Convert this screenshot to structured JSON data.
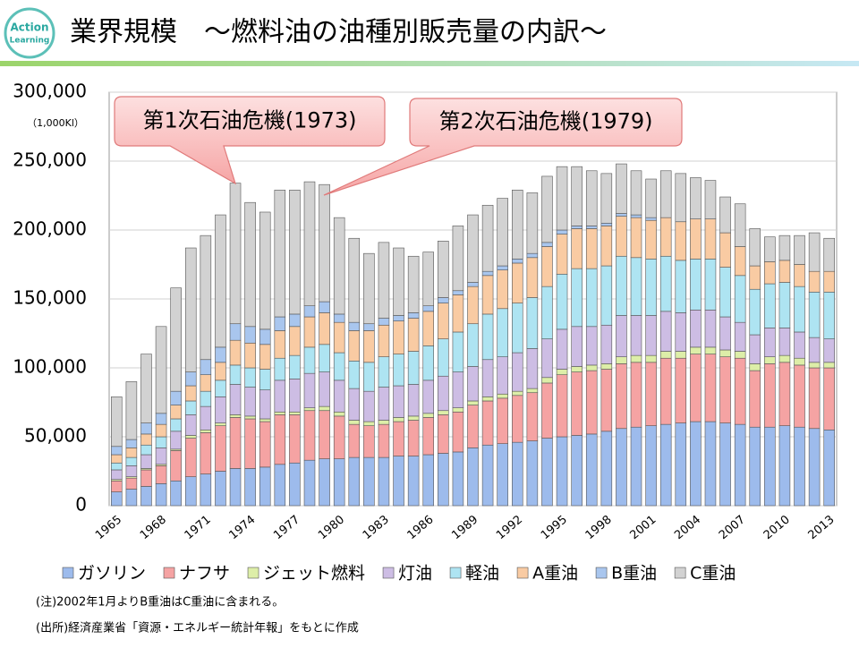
{
  "logo": {
    "line1": "Action",
    "line2": "Learning"
  },
  "header_title": "業界規模　～燃料油の油種別販売量の内訳～",
  "notes": [
    "(注)2002年1月よりB重油はC重油に含まれる。",
    "(出所)経済産業省「資源・エネルギー統計年報」をもとに作成"
  ],
  "chart_data": {
    "type": "stacked_bar",
    "y_label": "（1,000Kl）",
    "annotations": [
      "第1次石油危機(1973)",
      "第2次石油危機(1979)"
    ],
    "categories": [
      "1965",
      null,
      null,
      "1968",
      null,
      null,
      "1971",
      null,
      null,
      "1974",
      null,
      null,
      "1977",
      null,
      null,
      "1980",
      null,
      null,
      "1983",
      null,
      null,
      "1986",
      null,
      null,
      "1989",
      null,
      null,
      "1992",
      null,
      null,
      "1995",
      null,
      null,
      "1998",
      null,
      null,
      "2001",
      null,
      null,
      "2004",
      null,
      null,
      "2007",
      null,
      null,
      "2010",
      null,
      null,
      "2013"
    ],
    "ylim": [
      0,
      300000
    ],
    "yticks": [
      0,
      {
        "value": 50000,
        "label": "50,000"
      },
      {
        "value": 100000,
        "label": "100,000"
      },
      {
        "value": 150000,
        "label": "150,000"
      },
      {
        "value": 200000,
        "label": "200,000"
      },
      {
        "value": 250000,
        "label": "250,000"
      },
      {
        "value": 300000,
        "label": "300,000"
      }
    ],
    "grid": true,
    "legend": "bottom",
    "series": [
      {
        "name": "ガソリン",
        "color": "#9dbbec",
        "values": [
          10000,
          12000,
          14000,
          16000,
          18000,
          21000,
          23000,
          25000,
          27000,
          27000,
          28000,
          30000,
          31000,
          33000,
          34000,
          34000,
          35000,
          35000,
          35000,
          36000,
          36000,
          37000,
          38000,
          39000,
          42000,
          44000,
          45000,
          46000,
          47000,
          49000,
          50000,
          51000,
          52000,
          54000,
          56000,
          57000,
          58000,
          59000,
          60000,
          61000,
          61000,
          60000,
          59000,
          57000,
          57000,
          58000,
          57000,
          56000,
          55000
        ]
      },
      {
        "name": "ナフサ",
        "color": "#f5a3a3",
        "values": [
          8000,
          8000,
          12000,
          13000,
          22000,
          28000,
          30000,
          33000,
          37000,
          36000,
          33000,
          36000,
          35000,
          36000,
          35000,
          31000,
          24000,
          23000,
          24000,
          25000,
          26000,
          27000,
          28000,
          29000,
          31000,
          32000,
          33000,
          34000,
          35000,
          40000,
          45000,
          46000,
          46000,
          45000,
          47000,
          47000,
          46000,
          48000,
          47000,
          49000,
          49000,
          48000,
          48000,
          41000,
          46000,
          46000,
          45000,
          44000,
          45000
        ]
      },
      {
        "name": "ジェット燃料",
        "color": "#ddeea8",
        "values": [
          1000,
          1000,
          1000,
          1000,
          1000,
          2000,
          2000,
          2000,
          2000,
          2000,
          2000,
          2000,
          2000,
          2000,
          3000,
          3000,
          3000,
          3000,
          3000,
          3000,
          3000,
          3000,
          3000,
          3000,
          3000,
          3000,
          3000,
          3000,
          3000,
          4000,
          4000,
          4000,
          4000,
          4000,
          5000,
          5000,
          5000,
          5000,
          5000,
          5000,
          5000,
          5000,
          5000,
          5000,
          5000,
          5000,
          5000,
          4000,
          4000
        ]
      },
      {
        "name": "灯油",
        "color": "#cdbde4",
        "values": [
          7000,
          8000,
          10000,
          12000,
          13000,
          15000,
          17000,
          19000,
          22000,
          21000,
          21000,
          23000,
          24000,
          25000,
          25000,
          23000,
          23000,
          22000,
          24000,
          23000,
          23000,
          24000,
          25000,
          26000,
          25000,
          27000,
          27000,
          28000,
          29000,
          28000,
          29000,
          29000,
          28000,
          28000,
          30000,
          29000,
          29000,
          29000,
          28000,
          27000,
          27000,
          24000,
          21000,
          21000,
          21000,
          20000,
          19000,
          18000,
          17000
        ]
      },
      {
        "name": "軽油",
        "color": "#aee4f2",
        "values": [
          5000,
          6000,
          7000,
          8000,
          9000,
          10000,
          11000,
          12000,
          14000,
          14000,
          15000,
          16000,
          17000,
          19000,
          20000,
          20000,
          20000,
          21000,
          22000,
          23000,
          24000,
          25000,
          27000,
          29000,
          31000,
          33000,
          35000,
          36000,
          37000,
          38000,
          40000,
          42000,
          42000,
          43000,
          43000,
          42000,
          41000,
          40000,
          38000,
          37000,
          37000,
          36000,
          34000,
          33000,
          32000,
          33000,
          33000,
          33000,
          34000
        ]
      },
      {
        "name": "A重油",
        "color": "#f9cba3",
        "values": [
          6000,
          7000,
          8000,
          9000,
          10000,
          11000,
          12000,
          13000,
          18000,
          18000,
          18000,
          20000,
          21000,
          22000,
          23000,
          22000,
          22000,
          23000,
          23000,
          24000,
          24000,
          25000,
          26000,
          27000,
          27000,
          28000,
          28000,
          29000,
          29000,
          29000,
          29000,
          29000,
          29000,
          29000,
          29000,
          29000,
          28000,
          28000,
          28000,
          29000,
          29000,
          25000,
          21000,
          17000,
          16000,
          16000,
          16000,
          15000,
          15000
        ]
      },
      {
        "name": "B重油",
        "color": "#a9c6ee",
        "values": [
          6000,
          6000,
          8000,
          8000,
          10000,
          10000,
          11000,
          11000,
          12000,
          12000,
          11000,
          10000,
          9000,
          8000,
          8000,
          6000,
          6000,
          5000,
          5000,
          4000,
          4000,
          4000,
          4000,
          3000,
          3000,
          3000,
          3000,
          3000,
          3000,
          3000,
          3000,
          2000,
          2000,
          2000,
          2000,
          2000,
          2000,
          0,
          0,
          0,
          0,
          0,
          0,
          0,
          0,
          0,
          0,
          0,
          0
        ]
      },
      {
        "name": "C重油",
        "color": "#d2d2d2",
        "values": [
          36000,
          42000,
          50000,
          63000,
          75000,
          90000,
          90000,
          96000,
          102000,
          90000,
          85000,
          92000,
          90000,
          90000,
          85000,
          70000,
          61000,
          51000,
          55000,
          49000,
          41000,
          39000,
          41000,
          47000,
          49000,
          48000,
          49000,
          50000,
          44000,
          48000,
          46000,
          43000,
          40000,
          36000,
          36000,
          32000,
          28000,
          34000,
          35000,
          30000,
          28000,
          26000,
          31000,
          27000,
          18000,
          18000,
          21000,
          28000,
          24000
        ]
      }
    ]
  }
}
